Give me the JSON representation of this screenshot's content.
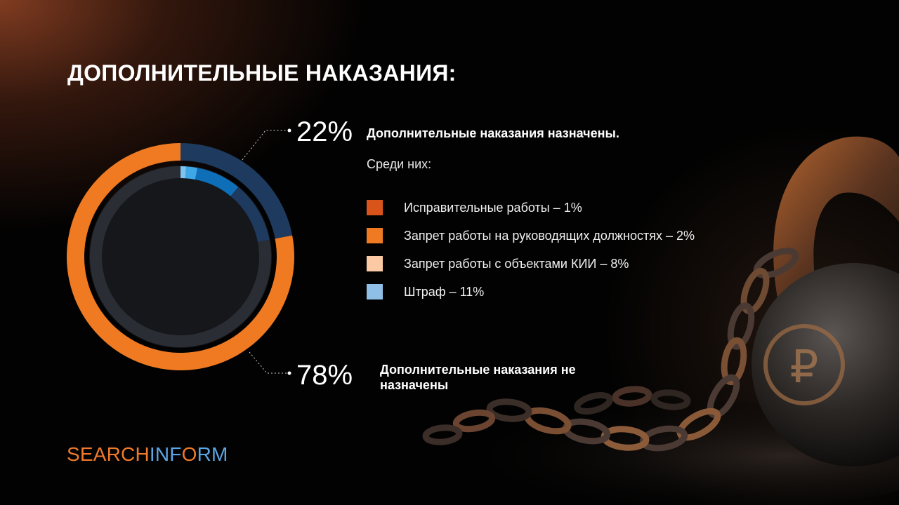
{
  "slide": {
    "title": "ДОПОЛНИТЕЛЬНЫЕ НАКАЗАНИЯ:",
    "pct_assigned": "22%",
    "caption_assigned": "Дополнительные наказания назначены.",
    "among_label": "Среди них:",
    "pct_not_assigned": "78%",
    "caption_not_assigned": "Дополнительные наказания не назначены",
    "logo": {
      "part1": "SEARCH",
      "part2": "INF",
      "part3": "O",
      "part4": "RM"
    }
  },
  "colors": {
    "orange": "#f07a22",
    "navy": "#1e3a5f",
    "dark_ring": "#2a2d33",
    "blue_mid": "#0f6eb8",
    "blue_light": "#3fa7e6",
    "blue_pale": "#7fc3ee"
  },
  "chart_data": {
    "type": "pie",
    "outer_ring": {
      "series": [
        {
          "name": "Дополнительные наказания назначены",
          "value": 22,
          "color": "#1e3a5f"
        },
        {
          "name": "Дополнительные наказания не назначены",
          "value": 78,
          "color": "#f07a22"
        }
      ]
    },
    "inner_ring": {
      "series": [
        {
          "name": "Исправительные работы",
          "value": 1,
          "color": "#7fc3ee"
        },
        {
          "name": "Запрет работы на руководящих должностях",
          "value": 2,
          "color": "#3fa7e6"
        },
        {
          "name": "Запрет работы с объектами КИИ",
          "value": 8,
          "color": "#0f6eb8"
        },
        {
          "name": "Штраф",
          "value": 11,
          "color": "#1e3a5f"
        },
        {
          "name": "rest",
          "value": 78,
          "color": "#2a2d33"
        }
      ]
    },
    "legend": [
      {
        "label": "Исправительные работы – 1%",
        "color": "#d9541b"
      },
      {
        "label": "Запрет работы на руководящих должностях – 2%",
        "color": "#f07a22"
      },
      {
        "label": "Запрет работы с объектами КИИ – 8%",
        "color": "#fbc9a3"
      },
      {
        "label": "Штраф – 11%",
        "color": "#8fbfe6"
      }
    ]
  }
}
